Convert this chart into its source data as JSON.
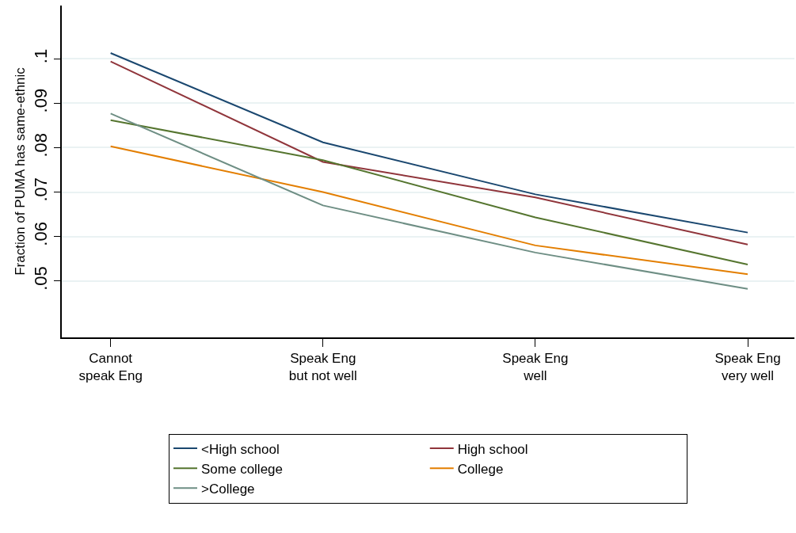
{
  "chart_data": {
    "type": "line",
    "ylabel": "Fraction of PUMA has same-ethnic",
    "categories": [
      "Cannot\nspeak Eng",
      "Speak Eng\nbut not well",
      "Speak Eng\nwell",
      "Speak Eng\nvery well"
    ],
    "series": [
      {
        "name": "<High school",
        "color": "#1a476f",
        "values": [
          0.1013,
          0.0812,
          0.0695,
          0.0609
        ]
      },
      {
        "name": "High school",
        "color": "#90353b",
        "values": [
          0.0994,
          0.0768,
          0.0688,
          0.0582
        ]
      },
      {
        "name": "Some college",
        "color": "#55752f",
        "values": [
          0.0862,
          0.0772,
          0.0643,
          0.0537
        ]
      },
      {
        "name": "College",
        "color": "#e37e00",
        "values": [
          0.0803,
          0.07,
          0.058,
          0.0515
        ]
      },
      {
        "name": ">College",
        "color": "#6e8e84",
        "values": [
          0.0877,
          0.067,
          0.0564,
          0.0482
        ]
      }
    ],
    "ylim": [
      0.0373,
      0.112
    ],
    "yticks": [
      {
        "value": 0.05,
        "label": ".05"
      },
      {
        "value": 0.06,
        "label": ".06"
      },
      {
        "value": 0.07,
        "label": ".07"
      },
      {
        "value": 0.08,
        "label": ".08"
      },
      {
        "value": 0.09,
        "label": ".09"
      },
      {
        "value": 0.1,
        "label": ".1"
      }
    ],
    "grid": "y",
    "legend": "bottom",
    "marker": "none",
    "line_style": "solid"
  }
}
